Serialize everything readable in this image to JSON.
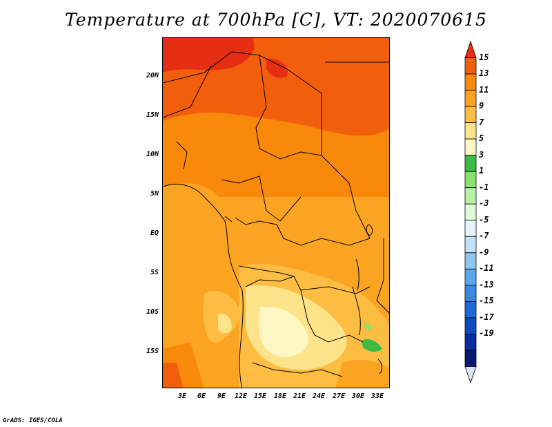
{
  "title": "Temperature at 700hPa [C], VT: 2020070615",
  "credit": "GrADS: IGES/COLA",
  "lat_labels": [
    "20N",
    "15N",
    "10N",
    "5N",
    "EQ",
    "5S",
    "10S",
    "15S"
  ],
  "lon_labels": [
    "3E",
    "6E",
    "9E",
    "12E",
    "15E",
    "18E",
    "21E",
    "24E",
    "27E",
    "30E",
    "33E"
  ],
  "colorbar": {
    "labels": [
      "15",
      "13",
      "11",
      "9",
      "7",
      "5",
      "3",
      "1",
      "-1",
      "-3",
      "-5",
      "-7",
      "-9",
      "-11",
      "-13",
      "-15",
      "-17",
      "-19"
    ],
    "colors": [
      "#e62f12",
      "#f25f0c",
      "#f9890a",
      "#fba421",
      "#fdbd43",
      "#fde38a",
      "#fdf7c3",
      "#3dbb45",
      "#86e36b",
      "#b7f1a5",
      "#e1fbd9",
      "#e6f5fb",
      "#c1e1f6",
      "#8ec6f0",
      "#5ca7ec",
      "#3a8ae3",
      "#1c6bd9",
      "#0b4bc2",
      "#062e9c",
      "#081a70",
      "#dde0f7"
    ]
  }
}
